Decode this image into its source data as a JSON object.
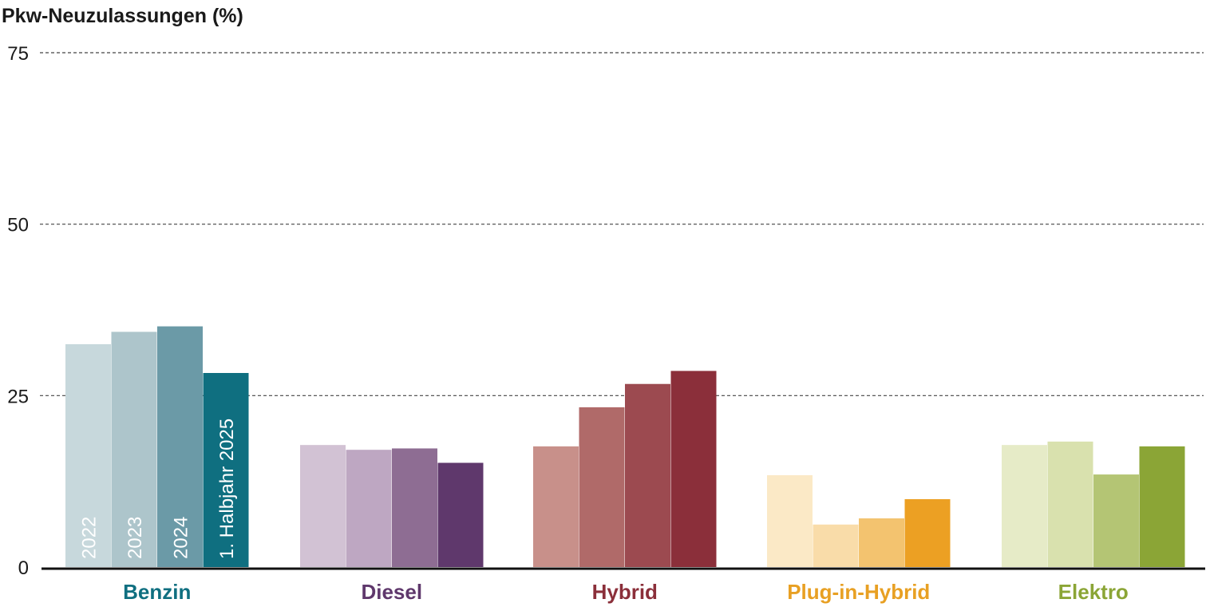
{
  "chart_data": {
    "type": "bar",
    "title": "",
    "ylabel": "Pkw-Neuzulassungen (%)",
    "xlabel": "",
    "ylim": [
      0,
      75
    ],
    "yticks": [
      0,
      25,
      50,
      75
    ],
    "grid": true,
    "categories": [
      "Benzin",
      "Diesel",
      "Hybrid",
      "Plug-in-Hybrid",
      "Elektro"
    ],
    "category_colors": [
      "#0f6f80",
      "#5f386c",
      "#8b2f3a",
      "#e8a023",
      "#8ba536"
    ],
    "series": [
      {
        "name": "2022",
        "values": [
          32.5,
          17.8,
          17.6,
          13.4,
          17.8
        ]
      },
      {
        "name": "2023",
        "values": [
          34.3,
          17.1,
          23.3,
          6.2,
          18.3
        ]
      },
      {
        "name": "2024",
        "values": [
          35.1,
          17.3,
          26.7,
          7.1,
          13.5
        ]
      },
      {
        "name": "1. Halbjahr 2025",
        "values": [
          28.3,
          15.2,
          28.6,
          9.9,
          17.6
        ]
      }
    ],
    "bar_colors": [
      [
        "#c7d8dc",
        "#adc5cb",
        "#6b9aa7",
        "#0f6f80"
      ],
      [
        "#d2c2d4",
        "#bea7c2",
        "#8e6d93",
        "#5f386c"
      ],
      [
        "#c8908a",
        "#b06a69",
        "#9c4a50",
        "#8b2f3a"
      ],
      [
        "#fbe9c6",
        "#f9dca9",
        "#f3c36f",
        "#eca023"
      ],
      [
        "#e6ebc7",
        "#d9e1ae",
        "#b4c574",
        "#8ba536"
      ]
    ]
  }
}
